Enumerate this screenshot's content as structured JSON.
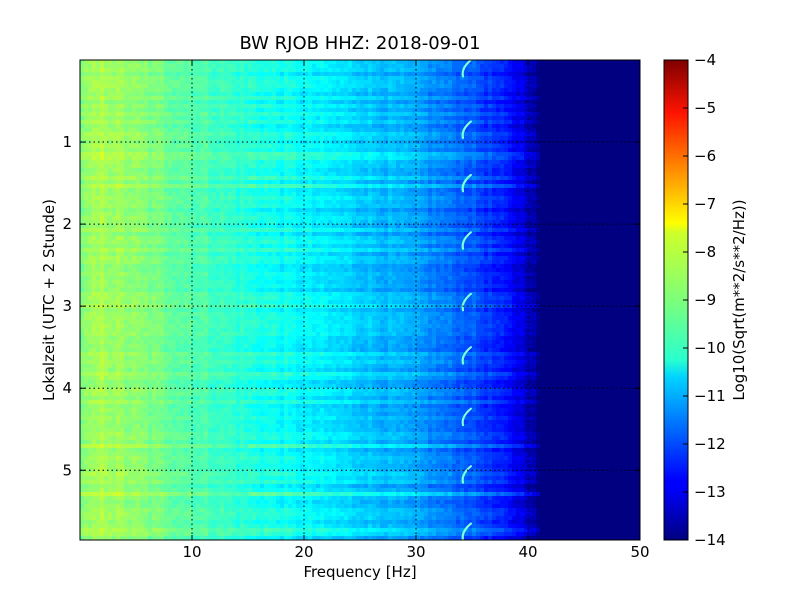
{
  "chart_data": {
    "type": "heatmap",
    "title": "BW RJOB HHZ: 2018-09-01",
    "xlabel": "Frequency [Hz]",
    "ylabel": "Lokalzeit (UTC + 2 Stunde)",
    "colorbar_label": "Log10(Sqrt(m**2/s**2/Hz))",
    "xlim": [
      0,
      50
    ],
    "ylim": [
      5.85,
      0
    ],
    "x_ticks": [
      10,
      20,
      30,
      40,
      50
    ],
    "y_ticks": [
      1,
      2,
      3,
      4,
      5
    ],
    "colorbar_range": [
      -14,
      -4
    ],
    "colorbar_ticks": [
      -4,
      -5,
      -6,
      -7,
      -8,
      -9,
      -10,
      -11,
      -12,
      -13,
      -14
    ],
    "colormap": "jet",
    "grid": true,
    "grid_style": "dotted",
    "intensity_profile": {
      "frequency": [
        0,
        2,
        5,
        10,
        15,
        20,
        25,
        30,
        35,
        38,
        40,
        41,
        50
      ],
      "value": [
        -9.0,
        -8.6,
        -8.9,
        -9.4,
        -9.9,
        -10.3,
        -10.7,
        -11.2,
        -11.9,
        -12.6,
        -13.2,
        -14.0,
        -14.0
      ]
    },
    "annotations": {
      "tonal_line_frequency": 34.5,
      "tonal_arc_times": [
        0.1,
        0.85,
        1.5,
        2.2,
        2.95,
        3.6,
        4.35,
        5.05,
        5.75
      ]
    }
  }
}
